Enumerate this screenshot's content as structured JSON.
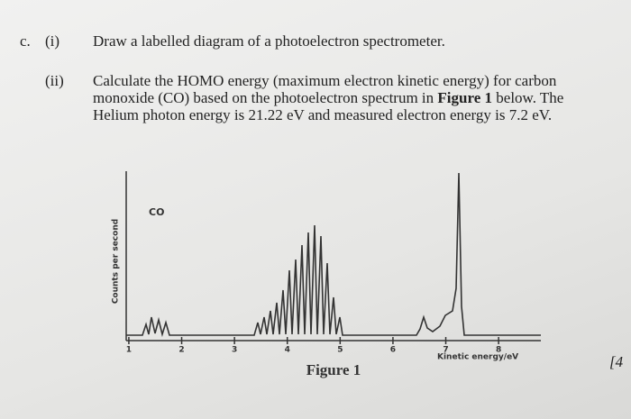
{
  "question": {
    "label": "c.",
    "parts": [
      {
        "number": "(i)",
        "text": "Draw a labelled diagram of a photoelectron spectrometer."
      },
      {
        "number": "(ii)",
        "text_segments": [
          "Calculate the HOMO energy (maximum electron kinetic energy) for carbon monoxide (CO) based on the photoelectron spectrum in ",
          "Figure 1",
          " below. The Helium photon energy is 21.22 eV and measured electron energy is 7.2 eV."
        ]
      }
    ],
    "marks": "[4"
  },
  "figure": {
    "annotation": "CO",
    "y_label": "Counts per second",
    "x_label": "Kinetic energy/eV",
    "xlim": [
      0.95,
      8.8
    ],
    "xticks": [
      1,
      2,
      3,
      4,
      5,
      6,
      7,
      8
    ],
    "caption": "Figure 1"
  }
}
